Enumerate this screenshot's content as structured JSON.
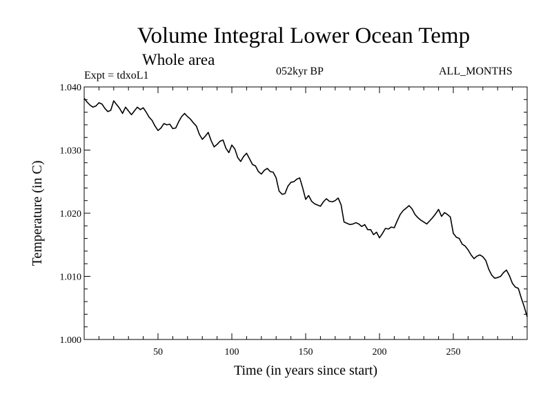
{
  "header": {
    "title": "Volume Integral Lower Ocean Temp",
    "subtitle": "Whole area",
    "experiment": "Expt = tdxoL1",
    "period": "052kyr BP",
    "months": "ALL_MONTHS"
  },
  "chart_data": {
    "type": "line",
    "title": "Volume Integral Lower Ocean Temp",
    "subtitle": "Whole area",
    "xlabel": "Time (in years since start)",
    "ylabel": "Temperature (in C)",
    "xlim": [
      0,
      300
    ],
    "ylim": [
      1.0,
      1.04
    ],
    "xticks": [
      50,
      100,
      150,
      200,
      250
    ],
    "xtick_labels": [
      "50",
      "100",
      "150",
      "200",
      "250"
    ],
    "yticks": [
      1.0,
      1.01,
      1.02,
      1.03,
      1.04
    ],
    "ytick_labels": [
      "1.000",
      "1.010",
      "1.020",
      "1.030",
      "1.040"
    ],
    "grid": false,
    "series": [
      {
        "name": "Volume Integral Lower Ocean Temp",
        "x": [
          0,
          2,
          4,
          6,
          8,
          10,
          12,
          14,
          16,
          18,
          20,
          22,
          24,
          26,
          28,
          30,
          32,
          34,
          36,
          38,
          40,
          42,
          44,
          46,
          48,
          50,
          52,
          54,
          56,
          58,
          60,
          62,
          64,
          66,
          68,
          70,
          72,
          74,
          76,
          78,
          80,
          82,
          84,
          86,
          88,
          90,
          92,
          94,
          96,
          98,
          100,
          102,
          104,
          106,
          108,
          110,
          112,
          114,
          116,
          118,
          120,
          122,
          124,
          126,
          128,
          130,
          132,
          134,
          136,
          138,
          140,
          142,
          144,
          146,
          148,
          150,
          152,
          154,
          156,
          158,
          160,
          162,
          164,
          166,
          168,
          170,
          172,
          174,
          176,
          178,
          180,
          182,
          184,
          186,
          188,
          190,
          192,
          194,
          196,
          198,
          200,
          202,
          204,
          206,
          208,
          210,
          212,
          214,
          216,
          218,
          220,
          222,
          224,
          226,
          228,
          230,
          232,
          234,
          236,
          238,
          240,
          242,
          244,
          246,
          248,
          250,
          252,
          254,
          256,
          258,
          260,
          262,
          264,
          266,
          268,
          270,
          272,
          274,
          276,
          278,
          280,
          282,
          284,
          286,
          288,
          290,
          292,
          294,
          296,
          298,
          300
        ],
        "values": [
          1.0382,
          1.0376,
          1.0371,
          1.0368,
          1.037,
          1.0375,
          1.0373,
          1.0366,
          1.0361,
          1.0363,
          1.0378,
          1.0372,
          1.0366,
          1.0358,
          1.0368,
          1.0362,
          1.0356,
          1.0362,
          1.0368,
          1.0364,
          1.0367,
          1.036,
          1.0352,
          1.0347,
          1.0338,
          1.0331,
          1.0335,
          1.0342,
          1.034,
          1.0341,
          1.0334,
          1.0335,
          1.0345,
          1.0353,
          1.0358,
          1.0353,
          1.0349,
          1.0343,
          1.0338,
          1.0325,
          1.0317,
          1.0322,
          1.0328,
          1.0315,
          1.0305,
          1.0309,
          1.0314,
          1.0316,
          1.0303,
          1.0296,
          1.0308,
          1.0302,
          1.0288,
          1.0282,
          1.029,
          1.0295,
          1.0286,
          1.0277,
          1.0275,
          1.0266,
          1.0262,
          1.0268,
          1.0271,
          1.0266,
          1.0265,
          1.0256,
          1.0235,
          1.023,
          1.0231,
          1.0243,
          1.0249,
          1.025,
          1.0254,
          1.0256,
          1.024,
          1.0222,
          1.0228,
          1.0219,
          1.0215,
          1.0213,
          1.0211,
          1.0218,
          1.0223,
          1.0219,
          1.0218,
          1.022,
          1.0224,
          1.0213,
          1.0186,
          1.0184,
          1.0182,
          1.0183,
          1.0185,
          1.0183,
          1.0179,
          1.0182,
          1.0174,
          1.0174,
          1.0166,
          1.017,
          1.0161,
          1.0168,
          1.0176,
          1.0175,
          1.0178,
          1.0177,
          1.0188,
          1.0198,
          1.0204,
          1.0208,
          1.0212,
          1.0207,
          1.0198,
          1.0193,
          1.0189,
          1.0186,
          1.0183,
          1.0188,
          1.0193,
          1.0199,
          1.0206,
          1.0195,
          1.0201,
          1.0198,
          1.0194,
          1.0168,
          1.0162,
          1.016,
          1.0151,
          1.0148,
          1.0142,
          1.0134,
          1.0128,
          1.0132,
          1.0134,
          1.0131,
          1.0125,
          1.0111,
          1.0102,
          1.0097,
          1.0098,
          1.01,
          1.0106,
          1.011,
          1.0101,
          1.0089,
          1.0083,
          1.0081,
          1.0066,
          1.0052,
          1.0036
        ]
      }
    ]
  }
}
